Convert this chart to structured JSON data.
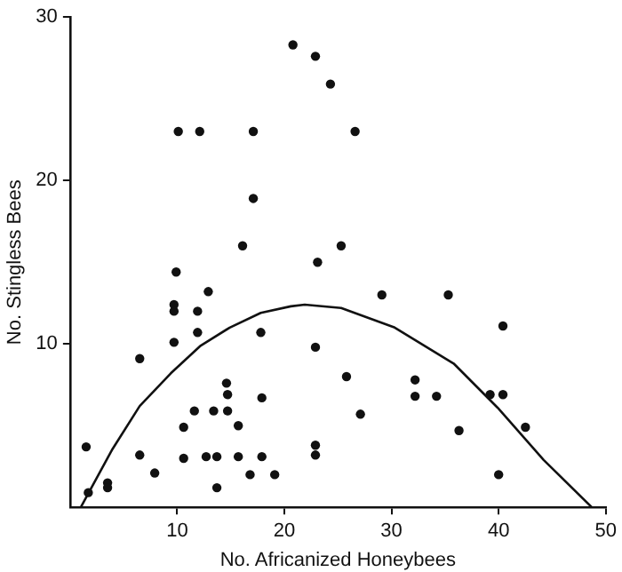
{
  "chart_data": {
    "type": "scatter",
    "xlabel": "No. Africanized Honeybees",
    "ylabel": "No. Stingless Bees",
    "xlim": [
      0,
      50
    ],
    "xticks": [
      10,
      20,
      30,
      40,
      50
    ],
    "ylim": [
      0,
      30
    ],
    "yticks": [
      10,
      20,
      30
    ],
    "grid": false,
    "legend": false,
    "marker": "circle",
    "series": [
      {
        "color": "#111111",
        "x": [
          20.8,
          22.9,
          10.1,
          12.1,
          17.1,
          17.1,
          16.1,
          9.9,
          12.9,
          24.3,
          26.6,
          25.3,
          23.1,
          29.1,
          35.3,
          9.7,
          9.7,
          11.9,
          11.9,
          9.7,
          17.8,
          6.5,
          1.5,
          1.7,
          3.5,
          3.5,
          6.5,
          7.9,
          10.6,
          10.6,
          11.6,
          12.7,
          13.4,
          13.7,
          13.7,
          14.6,
          14.7,
          14.7,
          15.7,
          15.7,
          16.8,
          17.9,
          17.9,
          19.1,
          40.4,
          22.9,
          25.8,
          27.1,
          32.2,
          32.2,
          34.2,
          36.3,
          39.2,
          40.4,
          42.5,
          40.0,
          22.9,
          22.9
        ],
        "values": [
          28.3,
          27.6,
          23.0,
          23.0,
          23.0,
          18.9,
          16.0,
          14.4,
          13.2,
          25.9,
          23.0,
          16.0,
          15.0,
          13.0,
          13.0,
          12.4,
          12.0,
          12.0,
          10.7,
          10.1,
          10.7,
          9.1,
          3.7,
          0.9,
          1.5,
          1.2,
          3.2,
          2.1,
          4.9,
          3.0,
          5.9,
          3.1,
          5.9,
          3.1,
          1.2,
          7.6,
          6.9,
          5.9,
          5.0,
          3.1,
          2.0,
          6.7,
          3.1,
          2.0,
          11.1,
          9.8,
          8.0,
          5.7,
          7.8,
          6.8,
          6.8,
          4.7,
          6.9,
          6.9,
          4.9,
          2.0,
          3.8,
          3.2
        ]
      },
      {
        "type": "line",
        "color": "#111111",
        "marker": "none",
        "line_style": "solid",
        "x": [
          1.0,
          3.9,
          6.5,
          9.4,
          12.2,
          14.9,
          17.8,
          20.6,
          21.9,
          25.3,
          30.3,
          35.8,
          39.9,
          44.2,
          48.7
        ],
        "values": [
          0,
          3.5,
          6.2,
          8.2,
          9.9,
          11.0,
          11.9,
          12.3,
          12.4,
          12.2,
          11.0,
          8.8,
          6.1,
          2.9,
          0
        ]
      }
    ]
  }
}
